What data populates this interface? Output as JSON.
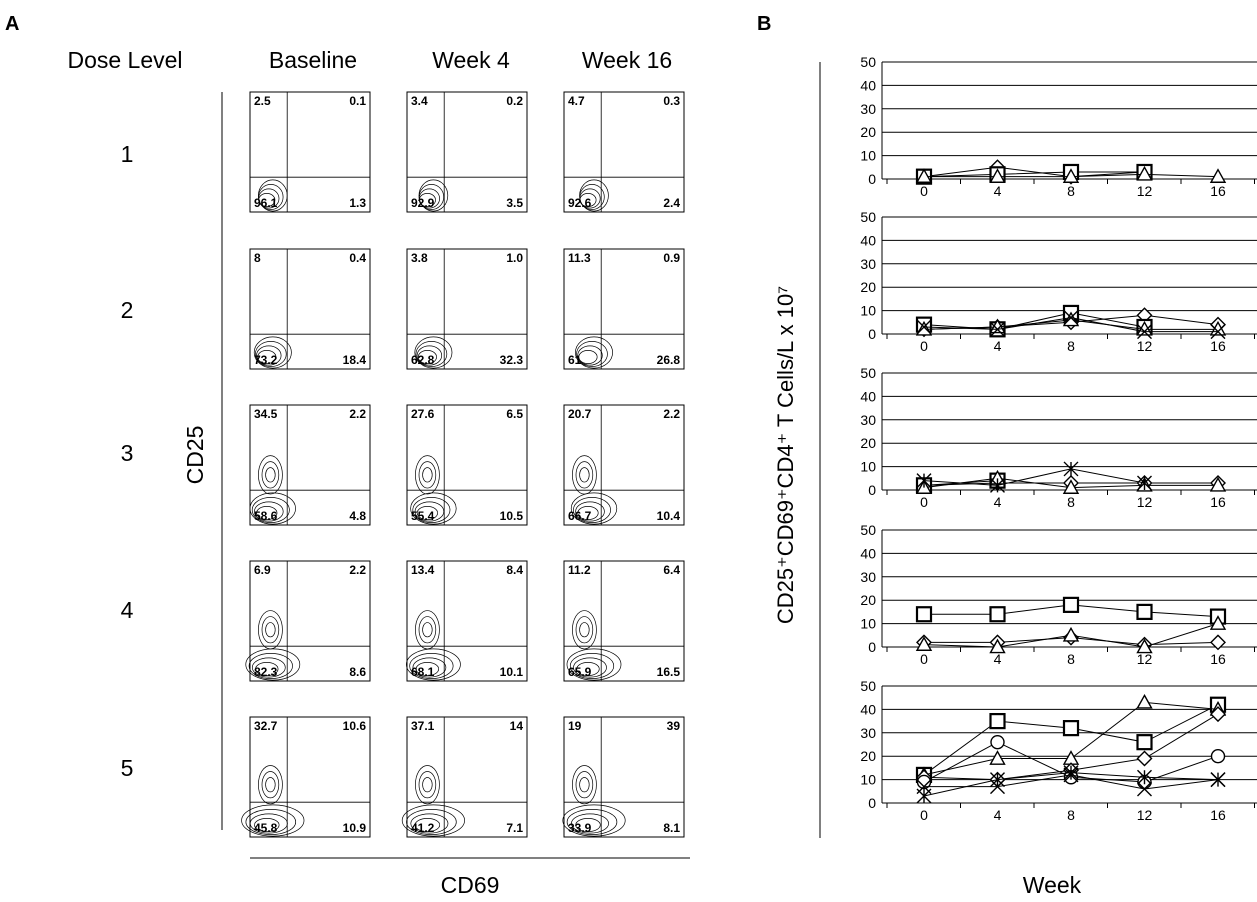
{
  "panel_a": {
    "letter": "A",
    "row_header": "Dose Level",
    "columns": [
      "Baseline",
      "Week 4",
      "Week 16"
    ],
    "rows": [
      "1",
      "2",
      "3",
      "4",
      "5"
    ],
    "y_label": "CD25",
    "x_label": "CD69",
    "quadrant_values": [
      [
        [
          2.5,
          0.1,
          96.1,
          1.3
        ],
        [
          3.4,
          0.2,
          92.9,
          3.5
        ],
        [
          4.7,
          0.3,
          92.6,
          2.4
        ]
      ],
      [
        [
          8,
          0.4,
          73.2,
          18.4
        ],
        [
          3.8,
          1.0,
          62.8,
          32.3
        ],
        [
          11.3,
          0.9,
          61,
          26.8
        ]
      ],
      [
        [
          34.5,
          2.2,
          58.6,
          4.8
        ],
        [
          27.6,
          6.5,
          55.4,
          10.5
        ],
        [
          20.7,
          2.2,
          66.7,
          10.4
        ]
      ],
      [
        [
          6.9,
          2.2,
          82.3,
          8.6
        ],
        [
          13.4,
          8.4,
          68.1,
          10.1
        ],
        [
          11.2,
          6.4,
          65.9,
          16.5
        ]
      ],
      [
        [
          32.7,
          10.6,
          45.8,
          10.9
        ],
        [
          37.1,
          14,
          41.2,
          7.1
        ],
        [
          19,
          39,
          33.9,
          8.1
        ]
      ]
    ]
  },
  "chart_data": {
    "type": "line",
    "letter": "B",
    "ylabel": "CD25⁺CD69⁺CD4⁺ T Cells/L x 10⁷",
    "xlabel": "Week",
    "x": [
      0,
      4,
      8,
      12,
      16
    ],
    "ylim": [
      0,
      50
    ],
    "yticks": [
      0,
      10,
      20,
      30,
      40,
      50
    ],
    "grid": true,
    "panels": [
      {
        "dose_level": "1",
        "series": [
          {
            "marker": "diamond",
            "values": [
              1,
              5,
              1,
              3,
              null
            ]
          },
          {
            "marker": "square",
            "values": [
              1,
              2,
              3,
              3,
              null
            ]
          },
          {
            "marker": "triangle",
            "values": [
              1,
              1,
              1,
              2,
              1
            ]
          }
        ]
      },
      {
        "dose_level": "2",
        "series": [
          {
            "marker": "diamond",
            "values": [
              2,
              3,
              5,
              8,
              4
            ]
          },
          {
            "marker": "square",
            "values": [
              4,
              2,
              9,
              3,
              null
            ]
          },
          {
            "marker": "triangle",
            "values": [
              2,
              3,
              6,
              2,
              2
            ]
          },
          {
            "marker": "x",
            "values": [
              3,
              2,
              7,
              1,
              1
            ]
          }
        ]
      },
      {
        "dose_level": "3",
        "series": [
          {
            "marker": "diamond",
            "values": [
              2,
              3,
              3,
              3,
              3
            ]
          },
          {
            "marker": "square",
            "values": [
              2,
              4,
              null,
              null,
              null
            ]
          },
          {
            "marker": "triangle",
            "values": [
              1,
              5,
              1,
              2,
              2
            ]
          },
          {
            "marker": "star",
            "values": [
              4,
              2,
              9,
              3,
              null
            ]
          }
        ]
      },
      {
        "dose_level": "4",
        "series": [
          {
            "marker": "square",
            "values": [
              14,
              14,
              18,
              15,
              13
            ]
          },
          {
            "marker": "diamond",
            "values": [
              2,
              2,
              4,
              1,
              2
            ]
          },
          {
            "marker": "triangle",
            "values": [
              1,
              0,
              5,
              0,
              10
            ]
          }
        ]
      },
      {
        "dose_level": "5",
        "series": [
          {
            "marker": "square",
            "values": [
              12,
              35,
              32,
              26,
              42
            ]
          },
          {
            "marker": "triangle",
            "values": [
              12,
              19,
              19,
              43,
              40
            ]
          },
          {
            "marker": "diamond",
            "values": [
              11,
              10,
              14,
              19,
              38
            ]
          },
          {
            "marker": "circle",
            "values": [
              9,
              26,
              11,
              9,
              20
            ]
          },
          {
            "marker": "x",
            "values": [
              7,
              7,
              12,
              6,
              10
            ]
          },
          {
            "marker": "star",
            "values": [
              3,
              10,
              13,
              11,
              10
            ]
          }
        ]
      }
    ]
  }
}
